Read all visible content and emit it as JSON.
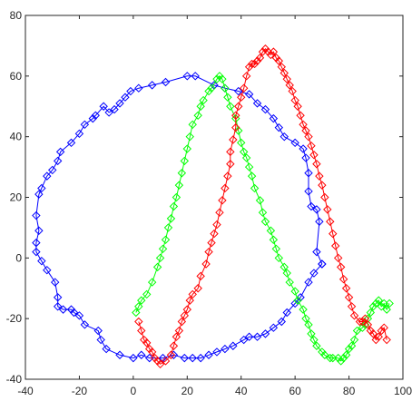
{
  "chart_data": {
    "type": "line",
    "title": "",
    "xlabel": "",
    "ylabel": "",
    "xlim": [
      -40,
      100
    ],
    "ylim": [
      -40,
      80
    ],
    "xticks": [
      -40,
      -20,
      0,
      20,
      40,
      60,
      80,
      100
    ],
    "yticks": [
      -40,
      -20,
      0,
      20,
      40,
      60,
      80
    ],
    "grid": false,
    "box": true,
    "marker": "diamond",
    "series": [
      {
        "color": "#0000ff",
        "points": [
          [
            70,
            -2
          ],
          [
            68,
            2
          ],
          [
            69,
            12
          ],
          [
            68,
            16
          ],
          [
            66,
            17
          ],
          [
            65,
            22
          ],
          [
            65,
            28
          ],
          [
            64,
            33
          ],
          [
            63,
            36
          ],
          [
            60,
            38
          ],
          [
            56,
            40
          ],
          [
            54,
            43
          ],
          [
            52,
            46
          ],
          [
            49,
            49
          ],
          [
            46,
            51
          ],
          [
            43,
            54
          ],
          [
            39,
            55
          ],
          [
            34,
            56
          ],
          [
            30,
            57
          ],
          [
            23,
            60
          ],
          [
            20,
            60
          ],
          [
            12,
            58
          ],
          [
            7,
            57
          ],
          [
            2,
            56
          ],
          [
            -1,
            55
          ],
          [
            -3,
            53
          ],
          [
            -5,
            51
          ],
          [
            -7,
            49
          ],
          [
            -9,
            48
          ],
          [
            -11,
            50
          ],
          [
            -14,
            47
          ],
          [
            -15,
            46
          ],
          [
            -18,
            44
          ],
          [
            -20,
            41
          ],
          [
            -23,
            38
          ],
          [
            -27,
            35
          ],
          [
            -28,
            32
          ],
          [
            -30,
            29
          ],
          [
            -32,
            27
          ],
          [
            -34,
            23
          ],
          [
            -35,
            21
          ],
          [
            -36,
            14
          ],
          [
            -35,
            9
          ],
          [
            -36,
            5
          ],
          [
            -36,
            2
          ],
          [
            -34,
            -1
          ],
          [
            -32,
            -4
          ],
          [
            -29,
            -8
          ],
          [
            -28,
            -13
          ],
          [
            -28,
            -16
          ],
          [
            -26,
            -17
          ],
          [
            -23,
            -17
          ],
          [
            -22,
            -18
          ],
          [
            -20,
            -19
          ],
          [
            -18,
            -22
          ],
          [
            -13,
            -24
          ],
          [
            -12,
            -27
          ],
          [
            -10,
            -30
          ],
          [
            -5,
            -32
          ],
          [
            0,
            -33
          ],
          [
            3,
            -32
          ],
          [
            6,
            -33
          ],
          [
            11,
            -33
          ],
          [
            15,
            -32
          ],
          [
            19,
            -33
          ],
          [
            22,
            -33
          ],
          [
            25,
            -33
          ],
          [
            28,
            -32
          ],
          [
            31,
            -31
          ],
          [
            34,
            -30
          ],
          [
            37,
            -29
          ],
          [
            41,
            -27
          ],
          [
            43,
            -26
          ],
          [
            46,
            -26
          ],
          [
            49,
            -25
          ],
          [
            52,
            -23
          ],
          [
            55,
            -21
          ],
          [
            57,
            -18
          ],
          [
            60,
            -15
          ],
          [
            62,
            -13
          ],
          [
            65,
            -8
          ],
          [
            67,
            -5
          ],
          [
            70,
            -2
          ]
        ]
      },
      {
        "color": "#00ff00",
        "points": [
          [
            1,
            -18
          ],
          [
            2,
            -16
          ],
          [
            3,
            -14
          ],
          [
            5,
            -12
          ],
          [
            7,
            -8
          ],
          [
            9,
            -3
          ],
          [
            10,
            0
          ],
          [
            11,
            3
          ],
          [
            12,
            6
          ],
          [
            13,
            10
          ],
          [
            14,
            13
          ],
          [
            15,
            17
          ],
          [
            16,
            20
          ],
          [
            17,
            24
          ],
          [
            18,
            28
          ],
          [
            19,
            32
          ],
          [
            20,
            36
          ],
          [
            21,
            40
          ],
          [
            22,
            44
          ],
          [
            24,
            47
          ],
          [
            25,
            50
          ],
          [
            26,
            52
          ],
          [
            28,
            55
          ],
          [
            29,
            56
          ],
          [
            31,
            59
          ],
          [
            32,
            60
          ],
          [
            33,
            59
          ],
          [
            34,
            56
          ],
          [
            35,
            53
          ],
          [
            36,
            50
          ],
          [
            38,
            46
          ],
          [
            39,
            42
          ],
          [
            40,
            38
          ],
          [
            41,
            35
          ],
          [
            42,
            33
          ],
          [
            43,
            30
          ],
          [
            44,
            27
          ],
          [
            45,
            23
          ],
          [
            47,
            19
          ],
          [
            48,
            15
          ],
          [
            49,
            12
          ],
          [
            51,
            9
          ],
          [
            52,
            6
          ],
          [
            53,
            3
          ],
          [
            54,
            0
          ],
          [
            56,
            -3
          ],
          [
            57,
            -5
          ],
          [
            58,
            -8
          ],
          [
            60,
            -11
          ],
          [
            61,
            -14
          ],
          [
            63,
            -17
          ],
          [
            64,
            -20
          ],
          [
            65,
            -22
          ],
          [
            66,
            -25
          ],
          [
            67,
            -27
          ],
          [
            68,
            -29
          ],
          [
            70,
            -31
          ],
          [
            71,
            -32
          ],
          [
            73,
            -33
          ],
          [
            74,
            -33
          ],
          [
            76,
            -33
          ],
          [
            77,
            -34
          ],
          [
            78,
            -33
          ],
          [
            79,
            -32
          ],
          [
            80,
            -30
          ],
          [
            81,
            -29
          ],
          [
            82,
            -27
          ],
          [
            83,
            -24
          ],
          [
            85,
            -23
          ],
          [
            86,
            -22
          ],
          [
            87,
            -20
          ],
          [
            88,
            -18
          ],
          [
            89,
            -16
          ],
          [
            90,
            -15
          ],
          [
            91,
            -14
          ],
          [
            92,
            -16
          ],
          [
            93,
            -15
          ],
          [
            94,
            -17
          ],
          [
            95,
            -15
          ]
        ]
      },
      {
        "color": "#ff0000",
        "points": [
          [
            2,
            -21
          ],
          [
            3,
            -24
          ],
          [
            4,
            -27
          ],
          [
            5,
            -28
          ],
          [
            6,
            -30
          ],
          [
            7,
            -31
          ],
          [
            8,
            -33
          ],
          [
            9,
            -34
          ],
          [
            10,
            -35
          ],
          [
            12,
            -34
          ],
          [
            14,
            -32
          ],
          [
            15,
            -29
          ],
          [
            16,
            -26
          ],
          [
            17,
            -24
          ],
          [
            18,
            -21
          ],
          [
            19,
            -19
          ],
          [
            20,
            -17
          ],
          [
            21,
            -14
          ],
          [
            22,
            -12
          ],
          [
            24,
            -10
          ],
          [
            25,
            -6
          ],
          [
            27,
            -2
          ],
          [
            28,
            2
          ],
          [
            29,
            5
          ],
          [
            30,
            8
          ],
          [
            31,
            11
          ],
          [
            32,
            15
          ],
          [
            33,
            19
          ],
          [
            34,
            23
          ],
          [
            35,
            27
          ],
          [
            36,
            31
          ],
          [
            36,
            35
          ],
          [
            37,
            39
          ],
          [
            38,
            43
          ],
          [
            38,
            47
          ],
          [
            39,
            50
          ],
          [
            40,
            53
          ],
          [
            41,
            56
          ],
          [
            42,
            60
          ],
          [
            43,
            63
          ],
          [
            44,
            64
          ],
          [
            45,
            64
          ],
          [
            46,
            65
          ],
          [
            47,
            66
          ],
          [
            48,
            68
          ],
          [
            49,
            69
          ],
          [
            50,
            68
          ],
          [
            51,
            67
          ],
          [
            52,
            68
          ],
          [
            53,
            66
          ],
          [
            54,
            65
          ],
          [
            55,
            63
          ],
          [
            56,
            61
          ],
          [
            57,
            59
          ],
          [
            58,
            57
          ],
          [
            59,
            55
          ],
          [
            60,
            52
          ],
          [
            61,
            50
          ],
          [
            62,
            47
          ],
          [
            63,
            44
          ],
          [
            64,
            42
          ],
          [
            65,
            40
          ],
          [
            66,
            37
          ],
          [
            67,
            34
          ],
          [
            68,
            31
          ],
          [
            69,
            27
          ],
          [
            70,
            24
          ],
          [
            71,
            20
          ],
          [
            72,
            16
          ],
          [
            73,
            12
          ],
          [
            74,
            8
          ],
          [
            75,
            4
          ],
          [
            76,
            0
          ],
          [
            77,
            -3
          ],
          [
            78,
            -7
          ],
          [
            79,
            -10
          ],
          [
            80,
            -13
          ],
          [
            81,
            -16
          ],
          [
            82,
            -19
          ],
          [
            84,
            -21
          ],
          [
            85,
            -21
          ],
          [
            86,
            -20
          ],
          [
            87,
            -22
          ],
          [
            88,
            -24
          ],
          [
            89,
            -25
          ],
          [
            90,
            -27
          ],
          [
            91,
            -26
          ],
          [
            92,
            -24
          ],
          [
            93,
            -23
          ],
          [
            94,
            -27
          ]
        ]
      }
    ]
  }
}
